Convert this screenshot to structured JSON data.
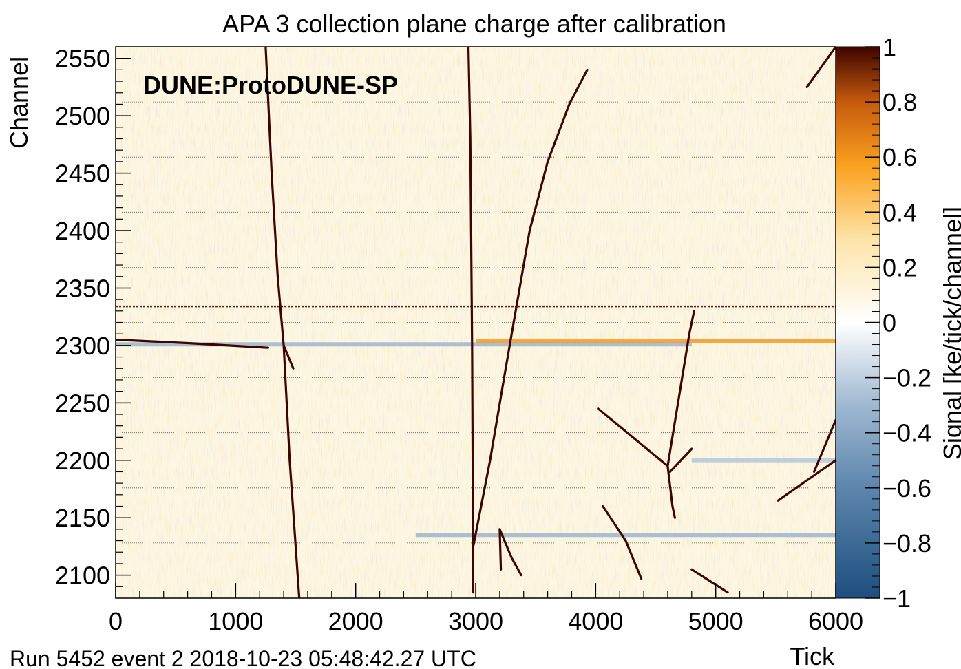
{
  "chart_data": {
    "type": "heatmap",
    "title": "APA 3 collection plane charge after calibration",
    "xlabel": "Tick",
    "ylabel": "Channel",
    "xlim": [
      0,
      6000
    ],
    "ylim": [
      2080,
      2560
    ],
    "xticks": [
      "0",
      "1000",
      "2000",
      "3000",
      "4000",
      "5000",
      "6000"
    ],
    "yticks": [
      "2100",
      "2150",
      "2200",
      "2250",
      "2300",
      "2350",
      "2400",
      "2450",
      "2500",
      "2550"
    ],
    "colorbar": {
      "label": "Signal [ke/tick/channel]",
      "range": [
        -1,
        1
      ],
      "ticks": [
        "1",
        "0.8",
        "0.6",
        "0.4",
        "0.2",
        "0",
        "−0.2",
        "−0.4",
        "−0.6",
        "−0.8",
        "−1"
      ],
      "colors": {
        "min": "#1d4e7e",
        "mid": "#ffffff",
        "high": "#fca321",
        "max": "#3d0400"
      }
    },
    "grid": "horizontal dotted lines",
    "annotation": "DUNE:ProtoDUNE-SP",
    "tracks": [
      {
        "name": "track-1",
        "points": [
          [
            1250,
            2560
          ],
          [
            1300,
            2450
          ],
          [
            1350,
            2360
          ],
          [
            1400,
            2300
          ],
          [
            1450,
            2200
          ],
          [
            1530,
            2080
          ]
        ]
      },
      {
        "name": "track-2",
        "points": [
          [
            2940,
            2560
          ],
          [
            2955,
            2480
          ],
          [
            2970,
            2300
          ],
          [
            2975,
            2200
          ],
          [
            2980,
            2085
          ]
        ]
      },
      {
        "name": "track-3",
        "points": [
          [
            2980,
            2125
          ],
          [
            3120,
            2200
          ],
          [
            3250,
            2280
          ],
          [
            3450,
            2400
          ],
          [
            3600,
            2460
          ],
          [
            3780,
            2510
          ],
          [
            3930,
            2540
          ]
        ]
      },
      {
        "name": "track-4",
        "points": [
          [
            0,
            2305
          ],
          [
            600,
            2302
          ],
          [
            1270,
            2298
          ]
        ]
      },
      {
        "name": "track-5",
        "points": [
          [
            4020,
            2245
          ],
          [
            4600,
            2195
          ]
        ]
      },
      {
        "name": "track-6",
        "points": [
          [
            4600,
            2195
          ],
          [
            4780,
            2310
          ],
          [
            4820,
            2330
          ]
        ]
      },
      {
        "name": "track-7",
        "points": [
          [
            4600,
            2195
          ],
          [
            4640,
            2160
          ],
          [
            4660,
            2150
          ]
        ]
      },
      {
        "name": "track-8",
        "points": [
          [
            4620,
            2190
          ],
          [
            4800,
            2210
          ]
        ]
      },
      {
        "name": "track-9",
        "points": [
          [
            4060,
            2160
          ],
          [
            4250,
            2130
          ],
          [
            4380,
            2097
          ]
        ]
      },
      {
        "name": "track-10",
        "points": [
          [
            4800,
            2105
          ],
          [
            5100,
            2085
          ]
        ]
      },
      {
        "name": "track-11",
        "points": [
          [
            5520,
            2165
          ],
          [
            6000,
            2200
          ]
        ]
      },
      {
        "name": "track-12",
        "points": [
          [
            5820,
            2190
          ],
          [
            6000,
            2235
          ]
        ]
      },
      {
        "name": "track-13",
        "points": [
          [
            5760,
            2525
          ],
          [
            6000,
            2560
          ]
        ]
      },
      {
        "name": "track-14",
        "points": [
          [
            3200,
            2140
          ],
          [
            3300,
            2115
          ],
          [
            3380,
            2100
          ]
        ]
      },
      {
        "name": "track-15",
        "points": [
          [
            3200,
            2140
          ],
          [
            3210,
            2105
          ]
        ]
      },
      {
        "name": "track-16",
        "points": [
          [
            1400,
            2300
          ],
          [
            1480,
            2280
          ]
        ]
      }
    ],
    "bands": [
      {
        "name": "band-2300",
        "channel": 2301,
        "color": "#9db6d2",
        "ticks": [
          0,
          4800
        ]
      },
      {
        "name": "band-2305",
        "channel": 2304,
        "color": "#f59a2a",
        "ticks": [
          3000,
          6000
        ]
      },
      {
        "name": "band-2135",
        "channel": 2135,
        "color": "#9db6d2",
        "ticks": [
          2500,
          6000
        ]
      },
      {
        "name": "band-2200",
        "channel": 2200,
        "color": "#b7c8dc",
        "ticks": [
          4800,
          6000
        ]
      },
      {
        "name": "band-2335",
        "channel": 2334,
        "color": "#3d0400",
        "ticks": [
          0,
          6000
        ]
      }
    ]
  },
  "footer": "Run 5452 event 2 2018-10-23 05:48:42.27 UTC"
}
